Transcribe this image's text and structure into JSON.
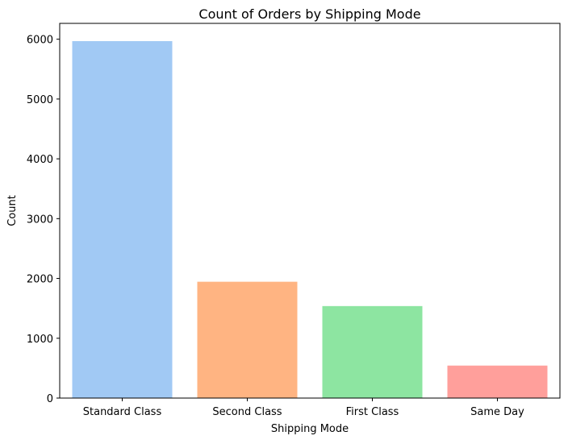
{
  "chart_data": {
    "type": "bar",
    "title": "Count of Orders by Shipping Mode",
    "xlabel": "Shipping Mode",
    "ylabel": "Count",
    "categories": [
      "Standard Class",
      "Second Class",
      "First Class",
      "Same Day"
    ],
    "values": [
      5968,
      1945,
      1538,
      543
    ],
    "colors": [
      "#a1c9f4",
      "#ffb482",
      "#8de5a1",
      "#ff9f9b"
    ],
    "ylim": [
      0,
      6265
    ],
    "yticks": [
      0,
      1000,
      2000,
      3000,
      4000,
      5000,
      6000
    ],
    "grid": false,
    "legend": "none"
  }
}
